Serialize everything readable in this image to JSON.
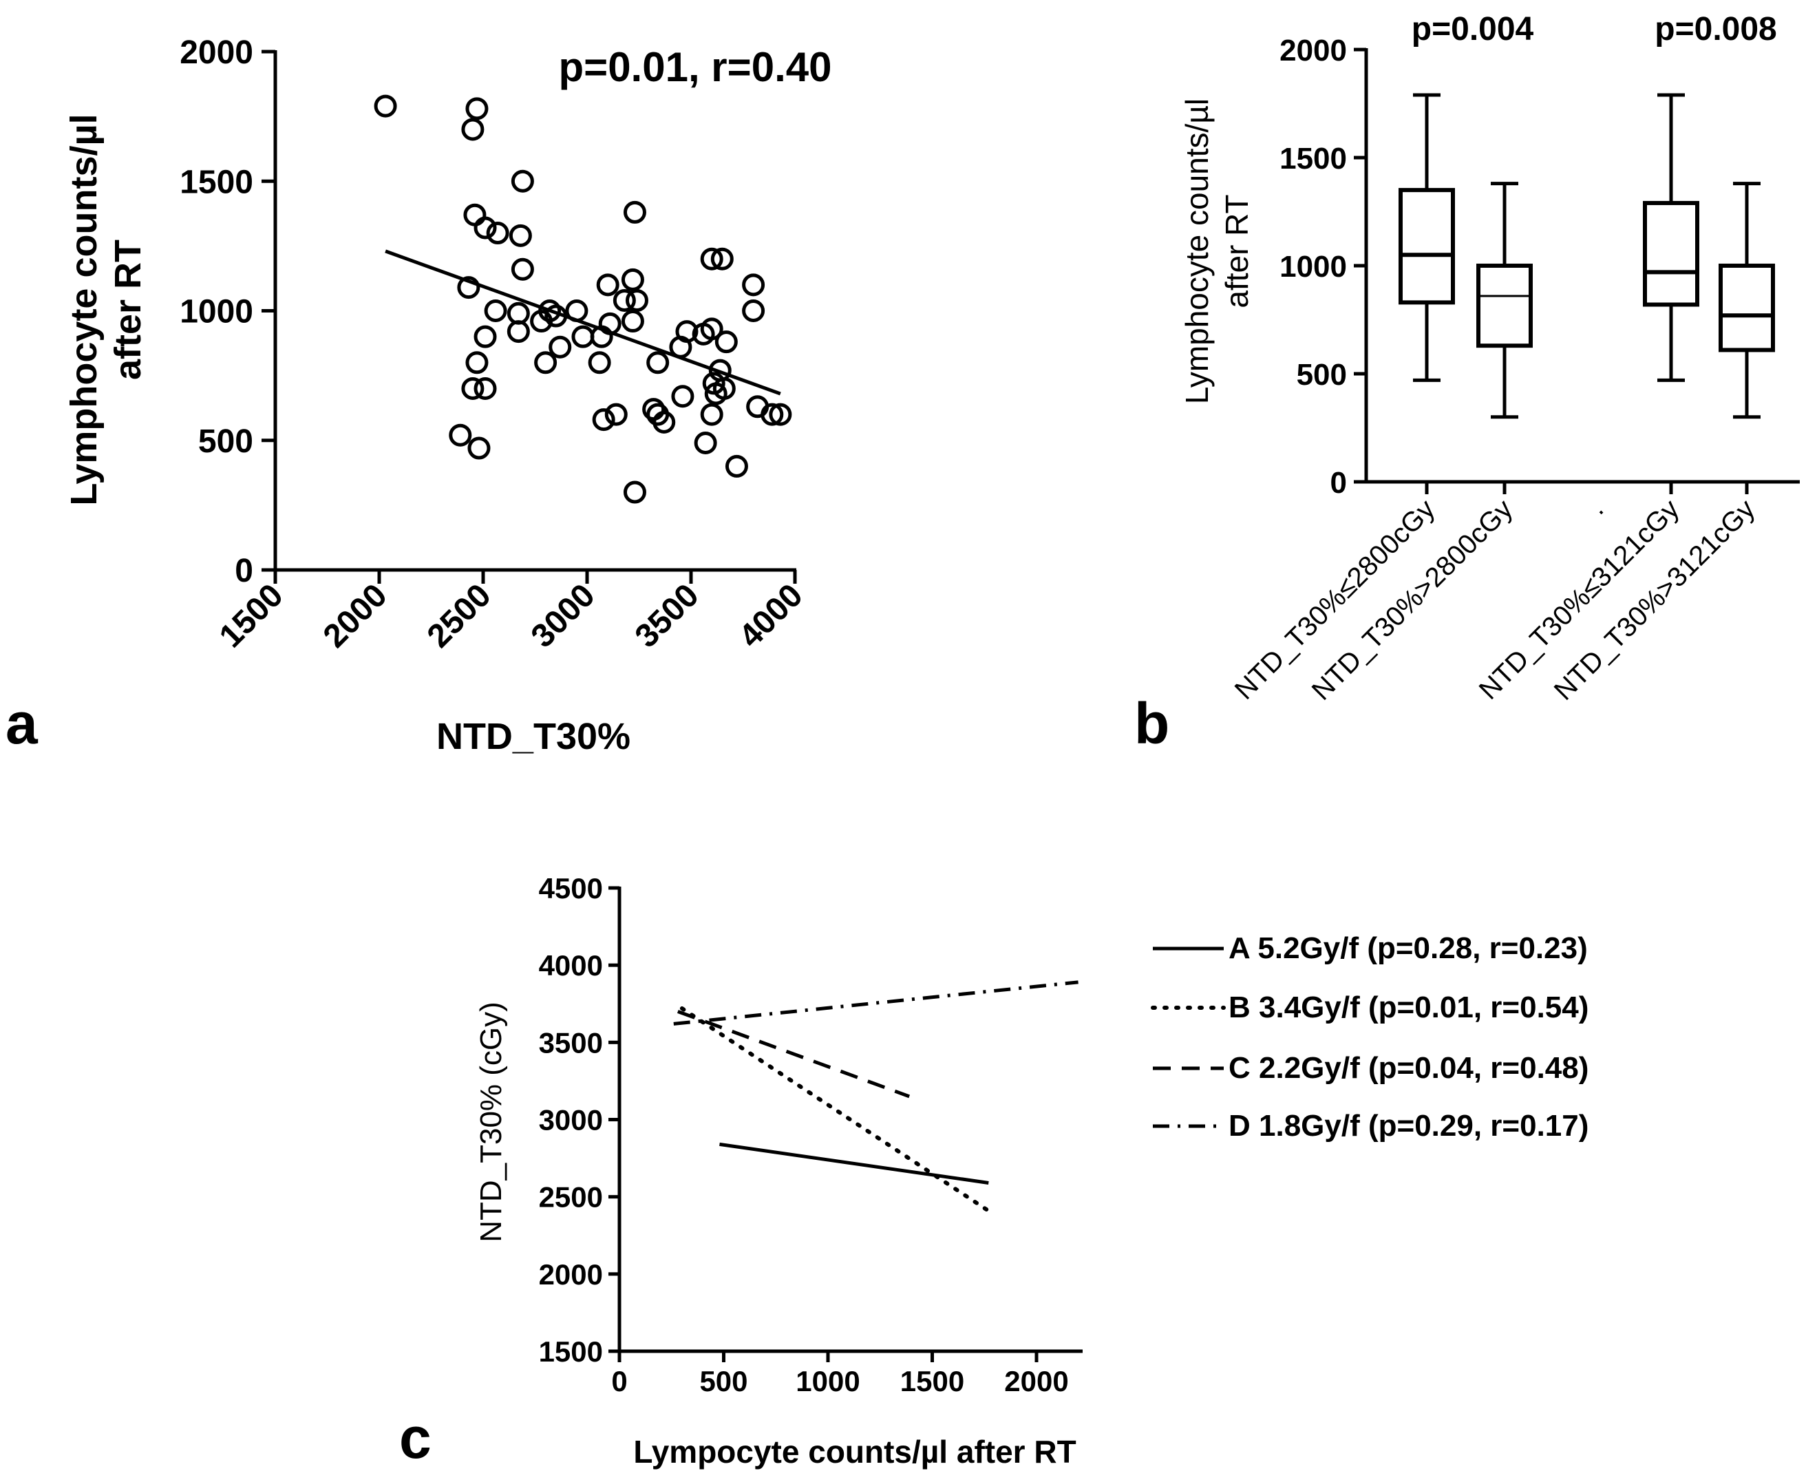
{
  "panels": {
    "a": {
      "letter": "a",
      "title": "p=0.01, r=0.40",
      "ylabel_line1": "Lymphocyte counts/µl",
      "ylabel_line2": "after RT",
      "xlabel": "NTD_T30%",
      "yticks": [
        "0",
        "500",
        "1000",
        "1500",
        "2000"
      ],
      "xticks": [
        "1500",
        "2000",
        "2500",
        "3000",
        "3500",
        "4000"
      ]
    },
    "b": {
      "letter": "b",
      "ylabel_line1": "Lymphocyte counts/µl",
      "ylabel_line2": "after RT",
      "yticks": [
        "0",
        "500",
        "1000",
        "1500",
        "2000"
      ],
      "pvalues": [
        "p=0.004",
        "p=0.008"
      ],
      "categories": [
        "NTD_T30%≤2800cGy",
        "NTD_T30%>2800cGy",
        ".",
        "NTD_T30%≤3121cGy",
        "NTD_T30%>3121cGy"
      ]
    },
    "c": {
      "letter": "c",
      "ylabel": "NTD_T30% (cGy)",
      "xlabel": "Lympocyte counts/µl after RT",
      "yticks": [
        "1500",
        "2000",
        "2500",
        "3000",
        "3500",
        "4000",
        "4500"
      ],
      "xticks": [
        "0",
        "500",
        "1000",
        "1500",
        "2000"
      ],
      "legend": [
        "A 5.2Gy/f (p=0.28, r=0.23)",
        "B 3.4Gy/f (p=0.01, r=0.54)",
        "C 2.2Gy/f (p=0.04, r=0.48)",
        "D 1.8Gy/f (p=0.29, r=0.17)"
      ]
    }
  },
  "chart_data": [
    {
      "type": "scatter",
      "panel": "a",
      "title": "p=0.01, r=0.40",
      "xlabel": "NTD_T30%",
      "ylabel": "Lymphocyte counts/µl after RT",
      "xlim": [
        1500,
        4000
      ],
      "ylim": [
        0,
        2000
      ],
      "points": [
        [
          2030,
          1790
        ],
        [
          2470,
          1780
        ],
        [
          2450,
          1700
        ],
        [
          2690,
          1500
        ],
        [
          3230,
          1380
        ],
        [
          2460,
          1370
        ],
        [
          2510,
          1320
        ],
        [
          2570,
          1300
        ],
        [
          2680,
          1290
        ],
        [
          3600,
          1200
        ],
        [
          3650,
          1200
        ],
        [
          2690,
          1160
        ],
        [
          3220,
          1120
        ],
        [
          3100,
          1100
        ],
        [
          3800,
          1100
        ],
        [
          2430,
          1090
        ],
        [
          3180,
          1040
        ],
        [
          3240,
          1040
        ],
        [
          2560,
          1000
        ],
        [
          2820,
          1000
        ],
        [
          2950,
          1000
        ],
        [
          3800,
          1000
        ],
        [
          3220,
          960
        ],
        [
          2780,
          960
        ],
        [
          2670,
          990
        ],
        [
          3110,
          950
        ],
        [
          2850,
          980
        ],
        [
          3600,
          930
        ],
        [
          3480,
          920
        ],
        [
          3560,
          910
        ],
        [
          2980,
          900
        ],
        [
          3070,
          900
        ],
        [
          2510,
          900
        ],
        [
          2670,
          920
        ],
        [
          3670,
          880
        ],
        [
          3450,
          860
        ],
        [
          2870,
          860
        ],
        [
          2800,
          800
        ],
        [
          2470,
          800
        ],
        [
          3060,
          800
        ],
        [
          3340,
          800
        ],
        [
          3640,
          770
        ],
        [
          3610,
          720
        ],
        [
          2450,
          700
        ],
        [
          2510,
          700
        ],
        [
          3660,
          700
        ],
        [
          3620,
          680
        ],
        [
          3460,
          670
        ],
        [
          3820,
          630
        ],
        [
          3320,
          620
        ],
        [
          3340,
          600
        ],
        [
          3140,
          600
        ],
        [
          3600,
          600
        ],
        [
          3890,
          600
        ],
        [
          3930,
          600
        ],
        [
          3080,
          580
        ],
        [
          3370,
          570
        ],
        [
          2390,
          520
        ],
        [
          3570,
          490
        ],
        [
          2480,
          470
        ],
        [
          3720,
          400
        ],
        [
          3230,
          300
        ]
      ],
      "regression": {
        "x": [
          2030,
          3930
        ],
        "y": [
          1230,
          680
        ]
      }
    },
    {
      "type": "box",
      "panel": "b",
      "ylabel": "Lymphocyte counts/µl after RT",
      "ylim": [
        0,
        2000
      ],
      "categories": [
        "NTD_T30%≤2800cGy",
        "NTD_T30%>2800cGy",
        ".",
        "NTD_T30%≤3121cGy",
        "NTD_T30%>3121cGy"
      ],
      "boxes": [
        {
          "category": "NTD_T30%≤2800cGy",
          "min": 470,
          "q1": 830,
          "median": 1050,
          "q3": 1350,
          "max": 1790,
          "thick": true
        },
        {
          "category": "NTD_T30%>2800cGy",
          "min": 300,
          "q1": 630,
          "median": 860,
          "q3": 1000,
          "max": 1380,
          "thick": false
        },
        {
          "category": "NTD_T30%≤3121cGy",
          "min": 470,
          "q1": 820,
          "median": 970,
          "q3": 1290,
          "max": 1790,
          "thick": true
        },
        {
          "category": "NTD_T30%>3121cGy",
          "min": 300,
          "q1": 610,
          "median": 770,
          "q3": 1000,
          "max": 1380,
          "thick": true
        }
      ],
      "annotations": [
        {
          "text": "p=0.004",
          "over": [
            0,
            1
          ]
        },
        {
          "text": "p=0.008",
          "over": [
            3,
            4
          ]
        }
      ]
    },
    {
      "type": "line",
      "panel": "c",
      "xlabel": "Lympocyte counts/µl after RT",
      "ylabel": "NTD_T30% (cGy)",
      "xlim": [
        0,
        2200
      ],
      "ylim": [
        1500,
        4500
      ],
      "series": [
        {
          "name": "A 5.2Gy/f (p=0.28, r=0.23)",
          "style": "solid",
          "x": [
            480,
            1770
          ],
          "y": [
            2840,
            2590
          ]
        },
        {
          "name": "B 3.4Gy/f (p=0.01, r=0.54)",
          "style": "dotted",
          "x": [
            300,
            1780
          ],
          "y": [
            3720,
            2400
          ]
        },
        {
          "name": "C 2.2Gy/f (p=0.04, r=0.48)",
          "style": "dashed",
          "x": [
            280,
            1390
          ],
          "y": [
            3700,
            3150
          ]
        },
        {
          "name": "D 1.8Gy/f (p=0.29, r=0.17)",
          "style": "dashdot",
          "x": [
            260,
            2200
          ],
          "y": [
            3620,
            3890
          ]
        }
      ]
    }
  ]
}
